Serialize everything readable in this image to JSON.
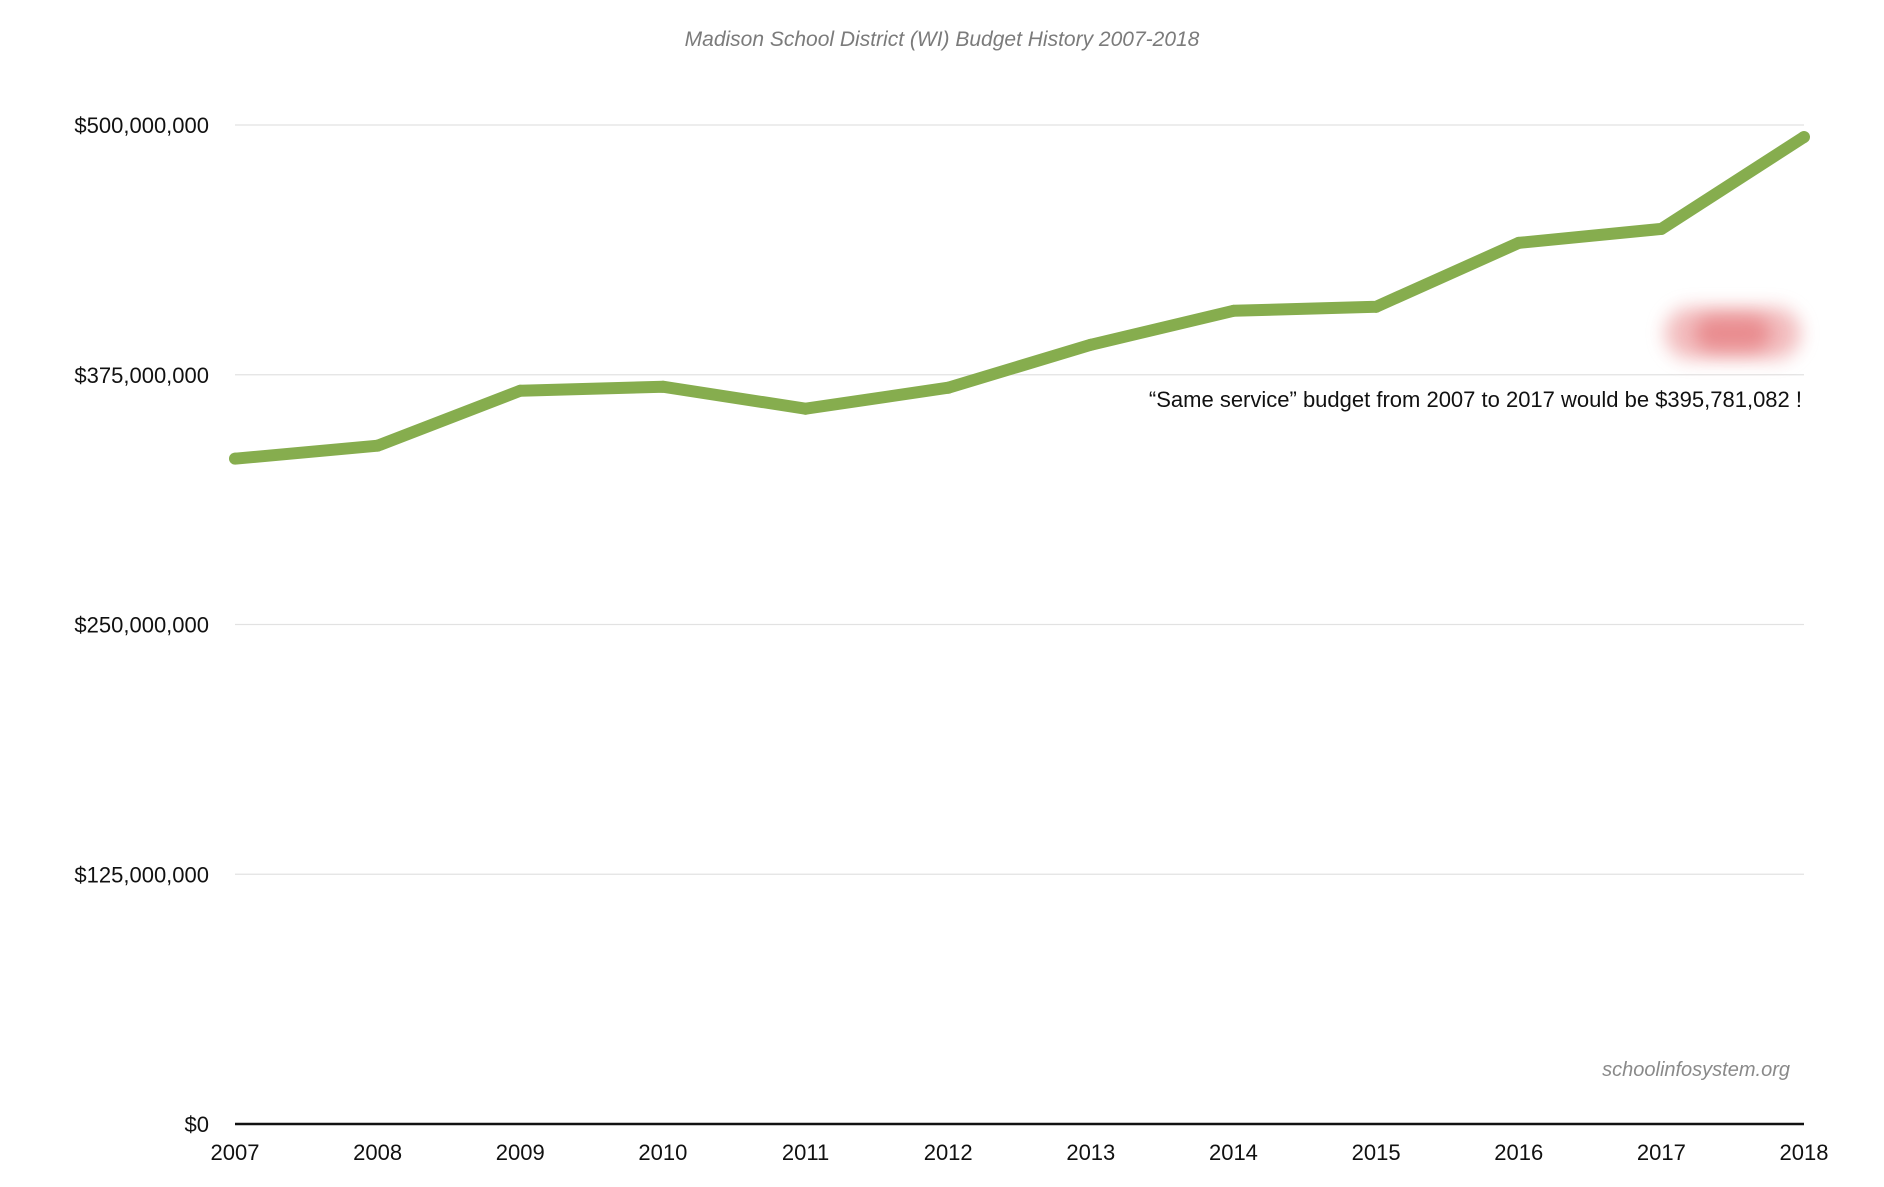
{
  "chart_data": {
    "type": "line",
    "title": "Madison School District (WI) Budget History 2007-2018",
    "xlabel": "",
    "ylabel": "",
    "categories": [
      "2007",
      "2008",
      "2009",
      "2010",
      "2011",
      "2012",
      "2013",
      "2014",
      "2015",
      "2016",
      "2017",
      "2018"
    ],
    "series": [
      {
        "values": [
          333000000,
          339500000,
          367000000,
          369000000,
          358000000,
          368500000,
          390000000,
          407000000,
          409000000,
          441000000,
          448000000,
          494000000
        ],
        "color": "#86ad4e"
      }
    ],
    "ylim": [
      0,
      500000000
    ],
    "yticks": [
      0,
      125000000,
      250000000,
      375000000,
      500000000
    ],
    "ytick_labels": [
      "$0",
      "$125,000,000",
      "$250,000,000",
      "$375,000,000",
      "$500,000,000"
    ],
    "grid": true,
    "legend": "none",
    "annotation": {
      "text": "“Same service” budget from 2007 to 2017 would be $395,781,082 !",
      "x": "2017.5",
      "y": 395781082,
      "marker_color": "#e8878a"
    },
    "source": "schoolinfosystem.org"
  }
}
